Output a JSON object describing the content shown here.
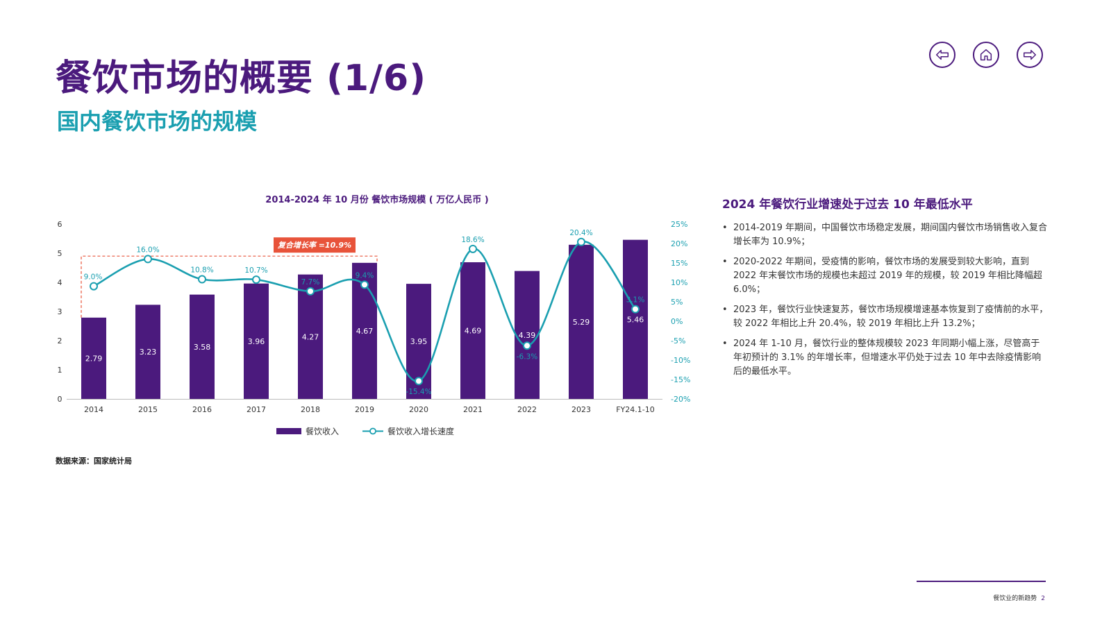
{
  "page": {
    "title": "餐饮市场的概要 (1/6)",
    "subtitle": "国内餐饮市场的规模",
    "source": "数据来源：国家统计局",
    "footer_text": "餐饮业的新趋势",
    "page_number": "2"
  },
  "nav": {
    "prev_icon": "arrow-left-icon",
    "home_icon": "home-icon",
    "next_icon": "arrow-right-icon",
    "accent": "#4b1a7d"
  },
  "chart_data": {
    "type": "bar",
    "title": "2014-2024 年 10 月份 餐饮市场规模 ( 万亿人民币 )",
    "categories": [
      "2014",
      "2015",
      "2016",
      "2017",
      "2018",
      "2019",
      "2020",
      "2021",
      "2022",
      "2023",
      "FY24.1-10"
    ],
    "series": [
      {
        "name": "餐饮收入",
        "type": "bar",
        "axis": "left",
        "color": "#4b1a7d",
        "values": [
          2.79,
          3.23,
          3.58,
          3.96,
          4.27,
          4.67,
          3.95,
          4.69,
          4.39,
          5.29,
          5.46
        ],
        "labels": [
          "2.79",
          "3.23",
          "3.58",
          "3.96",
          "4.27",
          "4.67",
          "3.95",
          "4.69",
          "4.39",
          "5.29",
          "5.46"
        ]
      },
      {
        "name": "餐饮收入增长速度",
        "type": "line",
        "axis": "right",
        "color": "#1a9fb0",
        "values": [
          9.0,
          16.0,
          10.8,
          10.7,
          7.7,
          9.4,
          -15.4,
          18.6,
          -6.3,
          20.4,
          3.1
        ],
        "labels": [
          "9.0%",
          "16.0%",
          "10.8%",
          "10.7%",
          "7.7%",
          "9.4%",
          "-15.4%",
          "18.6%",
          "-6.3%",
          "20.4%",
          "3.1%"
        ]
      }
    ],
    "y_left": {
      "ylim": [
        0,
        6
      ],
      "ticks": [
        "0",
        "1",
        "2",
        "3",
        "4",
        "5",
        "6"
      ]
    },
    "y_right": {
      "ylim": [
        -20,
        25
      ],
      "ticks": [
        "-20%",
        "-15%",
        "-10%",
        "-5%",
        "0%",
        "5%",
        "10%",
        "15%",
        "20%",
        "25%"
      ]
    },
    "annotation": {
      "text": "复合增长率 =10.9%",
      "color": "#e8533a",
      "from": "2014",
      "to": "2019",
      "level": 4.9
    },
    "grid": false,
    "legend_position": "bottom"
  },
  "side": {
    "heading": "2024 年餐饮行业增速处于过去 10 年最低水平",
    "bullets": [
      "2014-2019 年期间，中国餐饮市场稳定发展，期间国内餐饮市场销售收入复合增长率为 10.9%；",
      "2020-2022 年期间，受疫情的影响，餐饮市场的发展受到较大影响，直到 2022 年末餐饮市场的规模也未超过 2019 年的规模，较 2019 年相比降幅超 6.0%；",
      "2023 年，餐饮行业快速复苏，餐饮市场规模增速基本恢复到了疫情前的水平，较 2022 年相比上升 20.4%，较 2019 年相比上升 13.2%；",
      "2024 年 1-10 月，餐饮行业的整体规模较 2023 年同期小幅上涨，尽管高于年初预计的 3.1% 的年增长率，但增速水平仍处于过去 10 年中去除疫情影响后的最低水平。"
    ]
  }
}
